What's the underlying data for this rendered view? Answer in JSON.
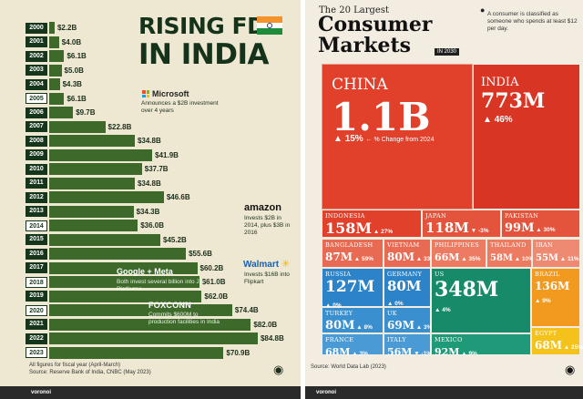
{
  "left_chart": {
    "title_line1": "RISING FDI",
    "title_line2": "IN INDIA",
    "footnote_1": "All figures for fiscal year (April-March)",
    "footnote_2": "Source: Reserve Bank of India, CNBC (May 2023)",
    "brand": "voronoi",
    "colors": {
      "bar": "#3d6a2b",
      "year_label": "#16361b",
      "background": "#eee8d3"
    }
  },
  "right_chart": {
    "heading_small": "The 20 Largest",
    "heading_big": "Consumer Markets",
    "heading_year": "IN 2030",
    "note": "A consumer is classified as someone who spends at least $12 per day.",
    "source": "Source: World Data Lab (2023)",
    "legend_pct": "% Change from 2024",
    "brand": "voronoi",
    "colors": {
      "asia_red": "#e1402b",
      "americas_blue": "#1778b8",
      "europe_blue": "#2d83c7",
      "us_green": "#178a6a",
      "latam_orange": "#f29a1f",
      "africa_yellow": "#f5c21c"
    }
  },
  "chart_data": [
    {
      "type": "bar",
      "orientation": "horizontal",
      "categories": [
        "2000",
        "2001",
        "2002",
        "2003",
        "2004",
        "2005",
        "2006",
        "2007",
        "2008",
        "2009",
        "2010",
        "2011",
        "2012",
        "2013",
        "2014",
        "2015",
        "2016",
        "2017",
        "2018",
        "2019",
        "2020",
        "2021",
        "2022",
        "2023"
      ],
      "values": [
        2.2,
        4.0,
        6.1,
        5.0,
        4.3,
        6.1,
        9.7,
        22.8,
        34.8,
        41.9,
        37.7,
        34.8,
        46.6,
        34.3,
        36.0,
        45.2,
        55.6,
        60.2,
        61.0,
        62.0,
        74.4,
        82.0,
        84.8,
        70.9
      ],
      "value_labels": [
        "$2.2B",
        "$4.0B",
        "$6.1B",
        "$5.0B",
        "$4.3B",
        "$6.1B",
        "$9.7B",
        "$22.8B",
        "$34.8B",
        "$41.9B",
        "$37.7B",
        "$34.8B",
        "$46.6B",
        "$34.3B",
        "$36.0B",
        "$45.2B",
        "$55.6B",
        "$60.2B",
        "$61.0B",
        "$62.0B",
        "$74.4B",
        "$82.0B",
        "$84.8B",
        "$70.9B"
      ],
      "highlight_years": [
        "2005",
        "2014",
        "2018",
        "2020",
        "2023"
      ],
      "annotations": [
        {
          "year": "2005",
          "company": "Microsoft",
          "text": "Announces a $2B investment over 4 years"
        },
        {
          "year": "2014",
          "company": "amazon",
          "text": "Invests $2B in 2014, plus $3B in 2016"
        },
        {
          "year": "2018",
          "company": "Walmart",
          "text": "Invests $16B into Flipkart"
        },
        {
          "year": "2020",
          "company": "Google + Meta",
          "text": "Both invest several billion into Jio Platforms"
        },
        {
          "year": "2020",
          "company": "FOXCONN",
          "text": "Commits $600M to production facilities in India"
        }
      ],
      "title": "RISING FDI IN INDIA"
    },
    {
      "type": "treemap",
      "title": "The 20 Largest Consumer Markets IN 2030",
      "items": [
        {
          "name": "CHINA",
          "value": "1.1B",
          "change": "15%"
        },
        {
          "name": "INDIA",
          "value": "773M",
          "change": "46%"
        },
        {
          "name": "INDONESIA",
          "value": "158M",
          "change": "27%"
        },
        {
          "name": "JAPAN",
          "value": "118M",
          "change": "-3%"
        },
        {
          "name": "PAKISTAN",
          "value": "99M",
          "change": "30%"
        },
        {
          "name": "BANGLADESH",
          "value": "87M",
          "change": "59%"
        },
        {
          "name": "VIETNAM",
          "value": "80M",
          "change": "33%"
        },
        {
          "name": "PHILIPPINES",
          "value": "66M",
          "change": "35%"
        },
        {
          "name": "THAILAND",
          "value": "58M",
          "change": "10%"
        },
        {
          "name": "IRAN",
          "value": "55M",
          "change": "11%"
        },
        {
          "name": "RUSSIA",
          "value": "127M",
          "change": "0%"
        },
        {
          "name": "GERMANY",
          "value": "80M",
          "change": "0%"
        },
        {
          "name": "TURKEY",
          "value": "80M",
          "change": "8%"
        },
        {
          "name": "UK",
          "value": "69M",
          "change": "3%"
        },
        {
          "name": "FRANCE",
          "value": "68M",
          "change": "3%"
        },
        {
          "name": "ITALY",
          "value": "56M",
          "change": "-1%"
        },
        {
          "name": "US",
          "value": "348M",
          "change": "4%"
        },
        {
          "name": "MEXICO",
          "value": "92M",
          "change": "9%"
        },
        {
          "name": "BRAZIL",
          "value": "136M",
          "change": "9%"
        },
        {
          "name": "EGYPT",
          "value": "68M",
          "change": "25%"
        }
      ]
    }
  ]
}
